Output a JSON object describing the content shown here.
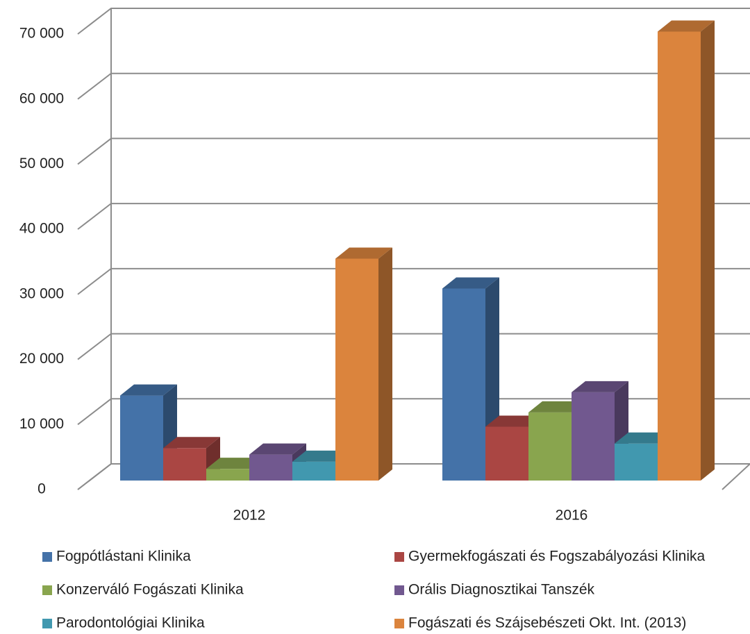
{
  "chart_data": {
    "type": "bar3d",
    "categories": [
      "2012",
      "2016"
    ],
    "series": [
      {
        "name": "Fogpótlástani Klinika",
        "color": "#4472a8",
        "values": [
          13100,
          29600
        ]
      },
      {
        "name": "Gyermekfogászati és Fogszabályozási Klinika",
        "color": "#aa4643",
        "values": [
          5000,
          8300
        ]
      },
      {
        "name": "Konzerváló Fogászati Klinika",
        "color": "#89a54e",
        "values": [
          1800,
          10500
        ]
      },
      {
        "name": "Orális Diagnosztikai Tanszék",
        "color": "#71588f",
        "values": [
          4000,
          13600
        ]
      },
      {
        "name": "Parodontológiai Klinika",
        "color": "#4198af",
        "values": [
          2900,
          5700
        ]
      },
      {
        "name": "Fogászati és Szájsebészeti Okt. Int. (2013)",
        "color": "#db843d",
        "values": [
          34200,
          69200
        ]
      }
    ],
    "ylim": [
      0,
      70000
    ],
    "yticks": [
      0,
      {
        "value": 10000,
        "label": "10 000"
      },
      {
        "value": 20000,
        "label": "20 000"
      },
      {
        "value": 30000,
        "label": "30 000"
      },
      {
        "value": 40000,
        "label": "40 000"
      },
      {
        "value": 50000,
        "label": "50 000"
      },
      {
        "value": 60000,
        "label": "60 000"
      },
      {
        "value": 70000,
        "label": "70 000"
      }
    ],
    "grid": true
  }
}
